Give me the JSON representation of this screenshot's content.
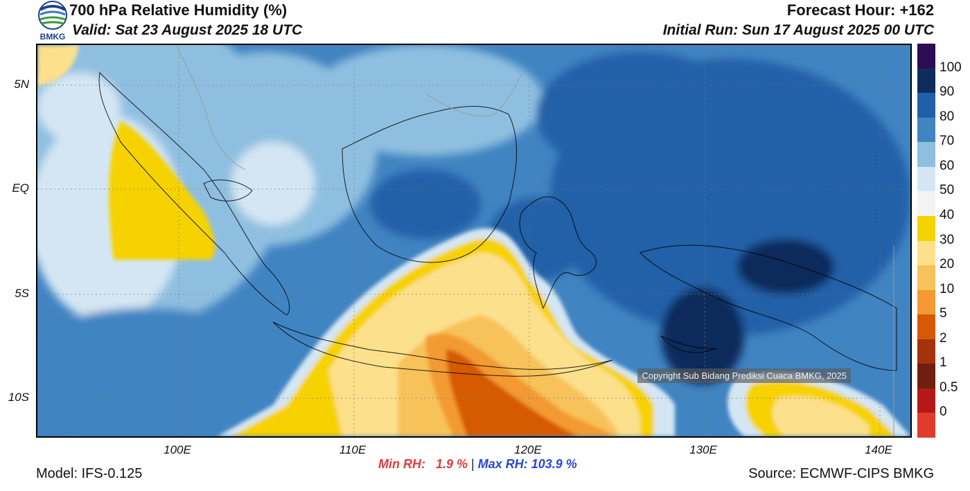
{
  "header": {
    "title": "700 hPa Relative Humidity (%)",
    "valid": "Valid: Sat 23 August 2025 18 UTC",
    "forecast_hour": "Forecast Hour: +162",
    "initial_run": "Initial Run: Sun 17 August 2025 00 UTC",
    "logo_text": "BMKG"
  },
  "axes": {
    "latitude_labels": [
      "5N",
      "EQ",
      "5S",
      "10S"
    ],
    "longitude_labels": [
      "100E",
      "110E",
      "120E",
      "130E",
      "140E"
    ]
  },
  "colorbar": {
    "labels": [
      "100",
      "90",
      "80",
      "70",
      "60",
      "50",
      "40",
      "30",
      "20",
      "10",
      "5",
      "2",
      "1",
      "0.5",
      "0"
    ],
    "colors": [
      "#2d0c55",
      "#0e2c5c",
      "#2160a8",
      "#4184c2",
      "#8fbfe0",
      "#d4e6f3",
      "#f3f3f3",
      "#f6d200",
      "#fde08c",
      "#f8c25a",
      "#f39a33",
      "#d65a06",
      "#a3330b",
      "#6e1f0f",
      "#b51818",
      "#e03c2c"
    ]
  },
  "stats": {
    "min_label": "Min RH:   1.9 %",
    "separator": "|",
    "max_label": "Max RH: 103.9 %"
  },
  "footer": {
    "model": "Model: IFS-0.125",
    "source": "Source: ECMWF-CIPS BMKG",
    "copyright": "Copyright Sub Bidang Prediksi Cuaca BMKG, 2025"
  }
}
